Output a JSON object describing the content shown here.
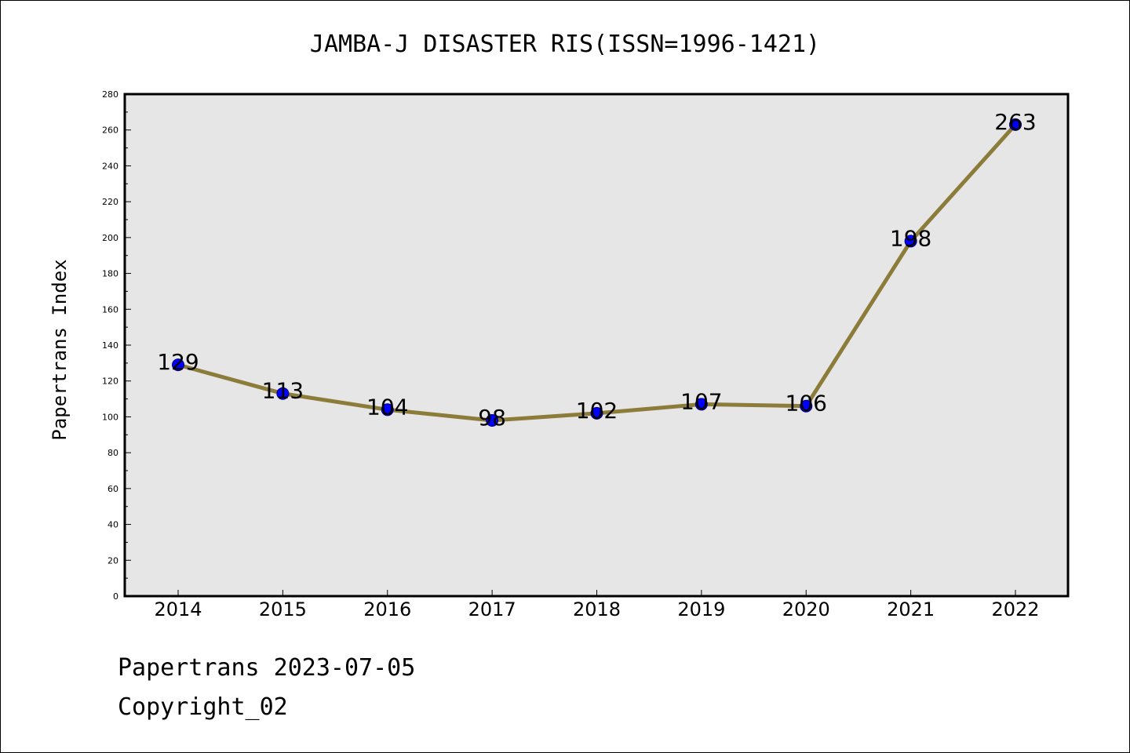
{
  "chart_data": {
    "type": "line",
    "title": "JAMBA-J DISASTER RIS(ISSN=1996-1421)",
    "xlabel": "",
    "ylabel": "Papertrans Index",
    "categories": [
      "2014",
      "2015",
      "2016",
      "2017",
      "2018",
      "2019",
      "2020",
      "2021",
      "2022"
    ],
    "series": [
      {
        "values": [
          129,
          113,
          104,
          98,
          102,
          107,
          106,
          198,
          263
        ]
      }
    ],
    "data_labels": [
      "129",
      "113",
      "104",
      "98",
      "102",
      "107",
      "106",
      "198",
      "263"
    ],
    "ylim": [
      0,
      280
    ],
    "yticks": [
      "0",
      "20",
      "40",
      "60",
      "80",
      "100",
      "120",
      "140",
      "160",
      "180",
      "200",
      "220",
      "240",
      "260",
      "280"
    ],
    "grid": false,
    "legend": "none",
    "colors": {
      "line": "#8c7c3a",
      "marker": "#0000ff",
      "plot_bg": "#e6e6e6"
    }
  },
  "footer": {
    "line1": "Papertrans 2023-07-05",
    "line2": "Copyright_02"
  }
}
